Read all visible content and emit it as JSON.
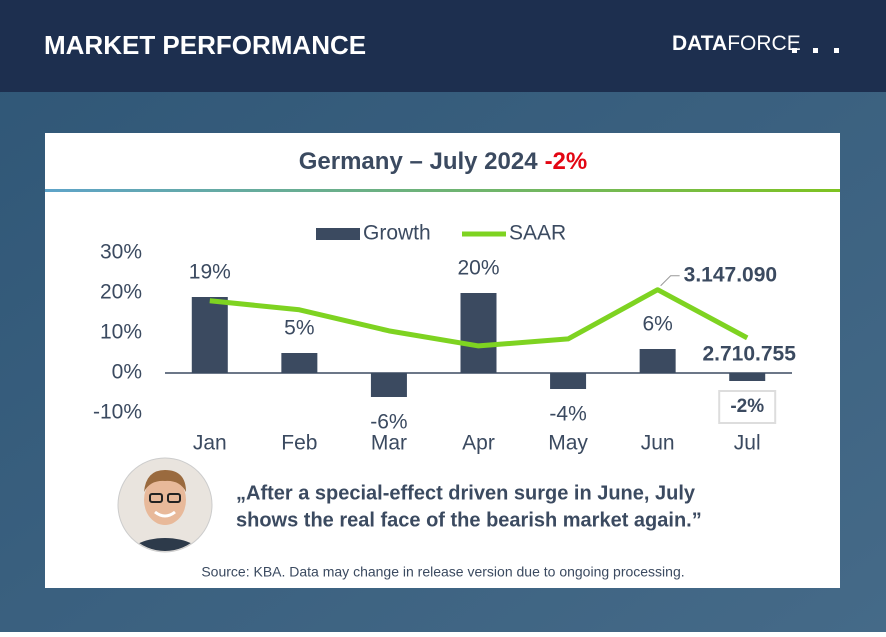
{
  "header": {
    "title": "MARKET PERFORMANCE",
    "logo_bold": "DATA",
    "logo_light": "FORCE"
  },
  "chart_data": {
    "type": "combo",
    "title": "Germany – July 2024",
    "title_highlight": "-2%",
    "categories": [
      "Jan",
      "Feb",
      "Mar",
      "Apr",
      "May",
      "Jun",
      "Jul"
    ],
    "ylim": [
      -10,
      30
    ],
    "yticks": [
      {
        "value": -10,
        "label": "-10%"
      },
      {
        "value": 0,
        "label": "0%"
      },
      {
        "value": 10,
        "label": "10%"
      },
      {
        "value": 20,
        "label": "20%"
      },
      {
        "value": 30,
        "label": "30%"
      }
    ],
    "y2lim": [
      2030000,
      3480000
    ],
    "legend": "top",
    "series": [
      {
        "name": "Growth",
        "type": "bar",
        "color": "#3b4a60",
        "values": [
          19,
          5,
          -6,
          20,
          -4,
          6,
          -2
        ],
        "value_labels": [
          "19%",
          "5%",
          "-6%",
          "20%",
          "-4%",
          "6%",
          "-2%"
        ]
      },
      {
        "name": "SAAR",
        "type": "line",
        "axis": "y2",
        "color": "#7ed321",
        "values": [
          3047100,
          2965300,
          2774400,
          2638000,
          2701700,
          3147090,
          2710755
        ],
        "value_labels": [
          null,
          null,
          null,
          null,
          null,
          "3.147.090",
          "2.710.755"
        ]
      }
    ]
  },
  "quote": [
    "„After a special-effect driven surge in June, July",
    "shows the real face of the bearish market again.”"
  ],
  "source": "Source: KBA. Data may change in release version due to ongoing processing."
}
